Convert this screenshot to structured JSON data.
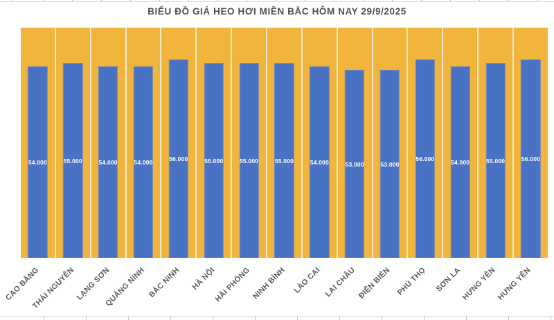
{
  "chart_data": {
    "type": "bar",
    "title": "BIỂU ĐỒ GIÁ HEO HƠI MIỀN BẮC HÔM NAY 29/9/2025",
    "categories": [
      "CAO BẰNG",
      "THÁI NGUYÊN",
      "LẠNG SƠN",
      "QUẢNG NINH",
      "BẮC NINH",
      "HÀ NỘI",
      "HẢI PHÒNG",
      "NINH BÌNH",
      "LÀO CAI",
      "LAI CHÂU",
      "ĐIỆN BIÊN",
      "PHÚ THỌ",
      "SƠN LA",
      "HƯNG YÊN",
      "HƯNG YÊN"
    ],
    "values": [
      54000,
      55000,
      54000,
      54000,
      56000,
      55000,
      55000,
      55000,
      54000,
      53000,
      53000,
      56000,
      54000,
      55000,
      56000
    ],
    "value_labels": [
      "54.000",
      "55.000",
      "54.000",
      "54.000",
      "56.000",
      "55.000",
      "55.000",
      "55.000",
      "54.000",
      "53.000",
      "53.000",
      "56.000",
      "54.000",
      "55.000",
      "56.000"
    ],
    "xlabel": "",
    "ylabel": "",
    "ylim": [
      0,
      65000
    ],
    "legend": "none",
    "grid": "vertical-category-dividers",
    "value_label_position": "center-of-bar",
    "category_label_rotation_deg": 45,
    "colors": {
      "plot_background": "#F2B53C",
      "bar": "#4A72C4",
      "column_divider": "#EFE8CF",
      "value_label": "#FFFFFF",
      "category_label": "#595959",
      "title": "#4F4F4F",
      "sheet_gridline": "#C7C5C2"
    }
  }
}
